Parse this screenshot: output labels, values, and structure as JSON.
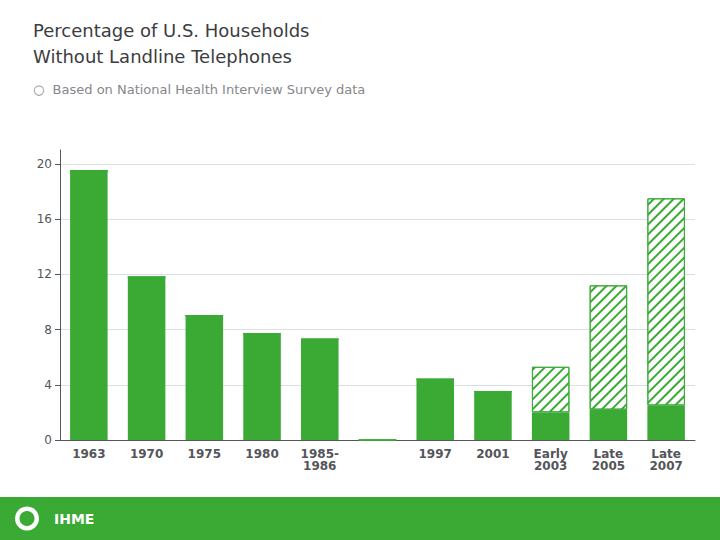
{
  "chart_data": {
    "type": "bar",
    "title": "Percentage of U.S. Households\nWithout Landline Telephones",
    "subtitle": "○  Based on National Health Interview Survey data",
    "annotations": [
      "IHME"
    ],
    "categories": [
      "1963",
      "1970",
      "1975",
      "1980",
      "1985-\n1986",
      null,
      "1997",
      "2001",
      "Early\n2003",
      "Late\n2005",
      "Late\n2007"
    ],
    "series": [
      {
        "color": "#3aaa35",
        "values": [
          19.5,
          11.8,
          9.0,
          7.7,
          7.3,
          0,
          4.4,
          3.5,
          2.0,
          2.2,
          2.5
        ]
      },
      {
        "color": "#3aaa35",
        "values": [
          0,
          0,
          0,
          0,
          0,
          0,
          0,
          0,
          3.3,
          9.0,
          15.0
        ]
      }
    ],
    "stacked": true,
    "ylim": [
      0,
      21
    ],
    "yticks": [
      0,
      4,
      8,
      12,
      16,
      20
    ],
    "grid": true
  }
}
